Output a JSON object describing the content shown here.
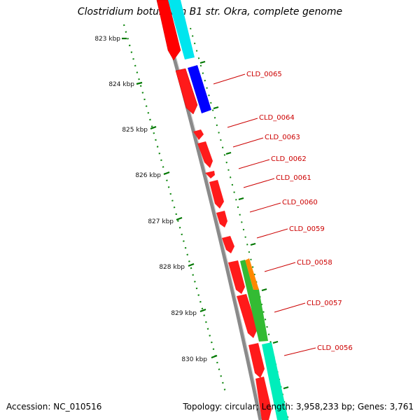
{
  "title": "Clostridium botulinum B1 str. Okra, complete genome",
  "footer": {
    "accession_label": "Accession:",
    "accession": "NC_010516",
    "topology_label": "Topology:",
    "topology": "circular",
    "length_label": "Length:",
    "length": "3,958,233 bp",
    "genes_label": "Genes:",
    "genes": "3,761"
  },
  "ruler": {
    "unit": "kbp",
    "ticks": [
      "823 kbp",
      "824 kbp",
      "825 kbp",
      "826 kbp",
      "827 kbp",
      "828 kbp",
      "829 kbp",
      "830 kbp"
    ]
  },
  "gene_labels": [
    "CLD_0065",
    "CLD_0064",
    "CLD_0063",
    "CLD_0062",
    "CLD_0061",
    "CLD_0060",
    "CLD_0059",
    "CLD_0058",
    "CLD_0057",
    "CLD_0056"
  ],
  "colors": {
    "cds_red": "#ff0000",
    "cds_dark_red": "#c80000",
    "backbone": "#808080",
    "ruler_green": "#008000",
    "cyan": "#00ffff",
    "blue": "#0000ff",
    "green": "#33cc33",
    "orange": "#ff9900",
    "teal": "#00ffbb",
    "label_red": "#cc0000"
  }
}
